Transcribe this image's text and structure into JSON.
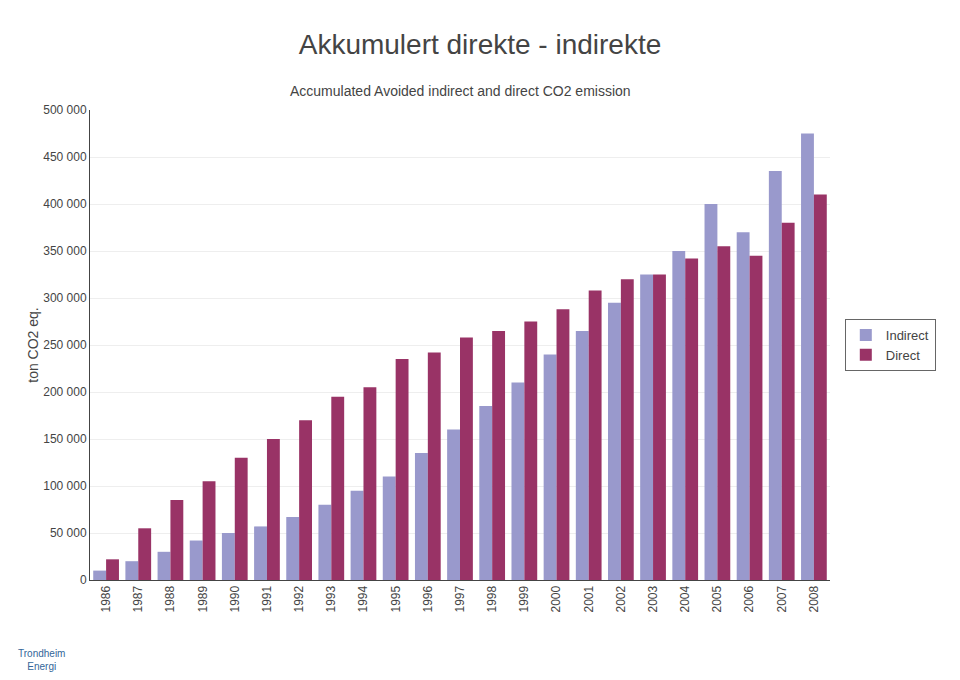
{
  "chart_data": {
    "type": "bar",
    "title": "Akkumulert direkte - indirekte",
    "subtitle": "Accumulated Avoided indirect and direct CO2 emission",
    "ylabel": "ton CO2 eq.",
    "annotations": [
      "Trondheim\nEnergi"
    ],
    "categories": [
      "1986",
      "1987",
      "1988",
      "1989",
      "1990",
      "1991",
      "1992",
      "1993",
      "1994",
      "1995",
      "1996",
      "1997",
      "1998",
      "1999",
      "2000",
      "2001",
      "2002",
      "2003",
      "2004",
      "2005",
      "2006",
      "2007",
      "2008"
    ],
    "series": [
      {
        "name": "Indirect",
        "color": "#9999CC",
        "values": [
          10000,
          20000,
          30000,
          42000,
          50000,
          57000,
          67000,
          80000,
          95000,
          110000,
          135000,
          160000,
          185000,
          210000,
          240000,
          265000,
          295000,
          325000,
          350000,
          400000,
          370000,
          435000,
          475000
        ]
      },
      {
        "name": "Direct",
        "color": "#993366",
        "values": [
          22000,
          55000,
          85000,
          105000,
          130000,
          150000,
          170000,
          195000,
          205000,
          235000,
          242000,
          258000,
          265000,
          275000,
          288000,
          308000,
          320000,
          325000,
          342000,
          355000,
          345000,
          380000,
          410000
        ]
      }
    ],
    "ylim": [
      0,
      500000
    ],
    "yticks": [
      0,
      {
        "value": 50000,
        "label": "50 000"
      },
      {
        "value": 100000,
        "label": "100 000"
      },
      {
        "value": 150000,
        "label": "150 000"
      },
      {
        "value": 200000,
        "label": "200 000"
      },
      {
        "value": 250000,
        "label": "250 000"
      },
      {
        "value": 300000,
        "label": "300 000"
      },
      {
        "value": 350000,
        "label": "350 000"
      },
      {
        "value": 400000,
        "label": "400 000"
      },
      {
        "value": 450000,
        "label": "450 000"
      },
      {
        "value": 500000,
        "label": "500 000"
      }
    ],
    "grid": true,
    "legend": "right"
  }
}
